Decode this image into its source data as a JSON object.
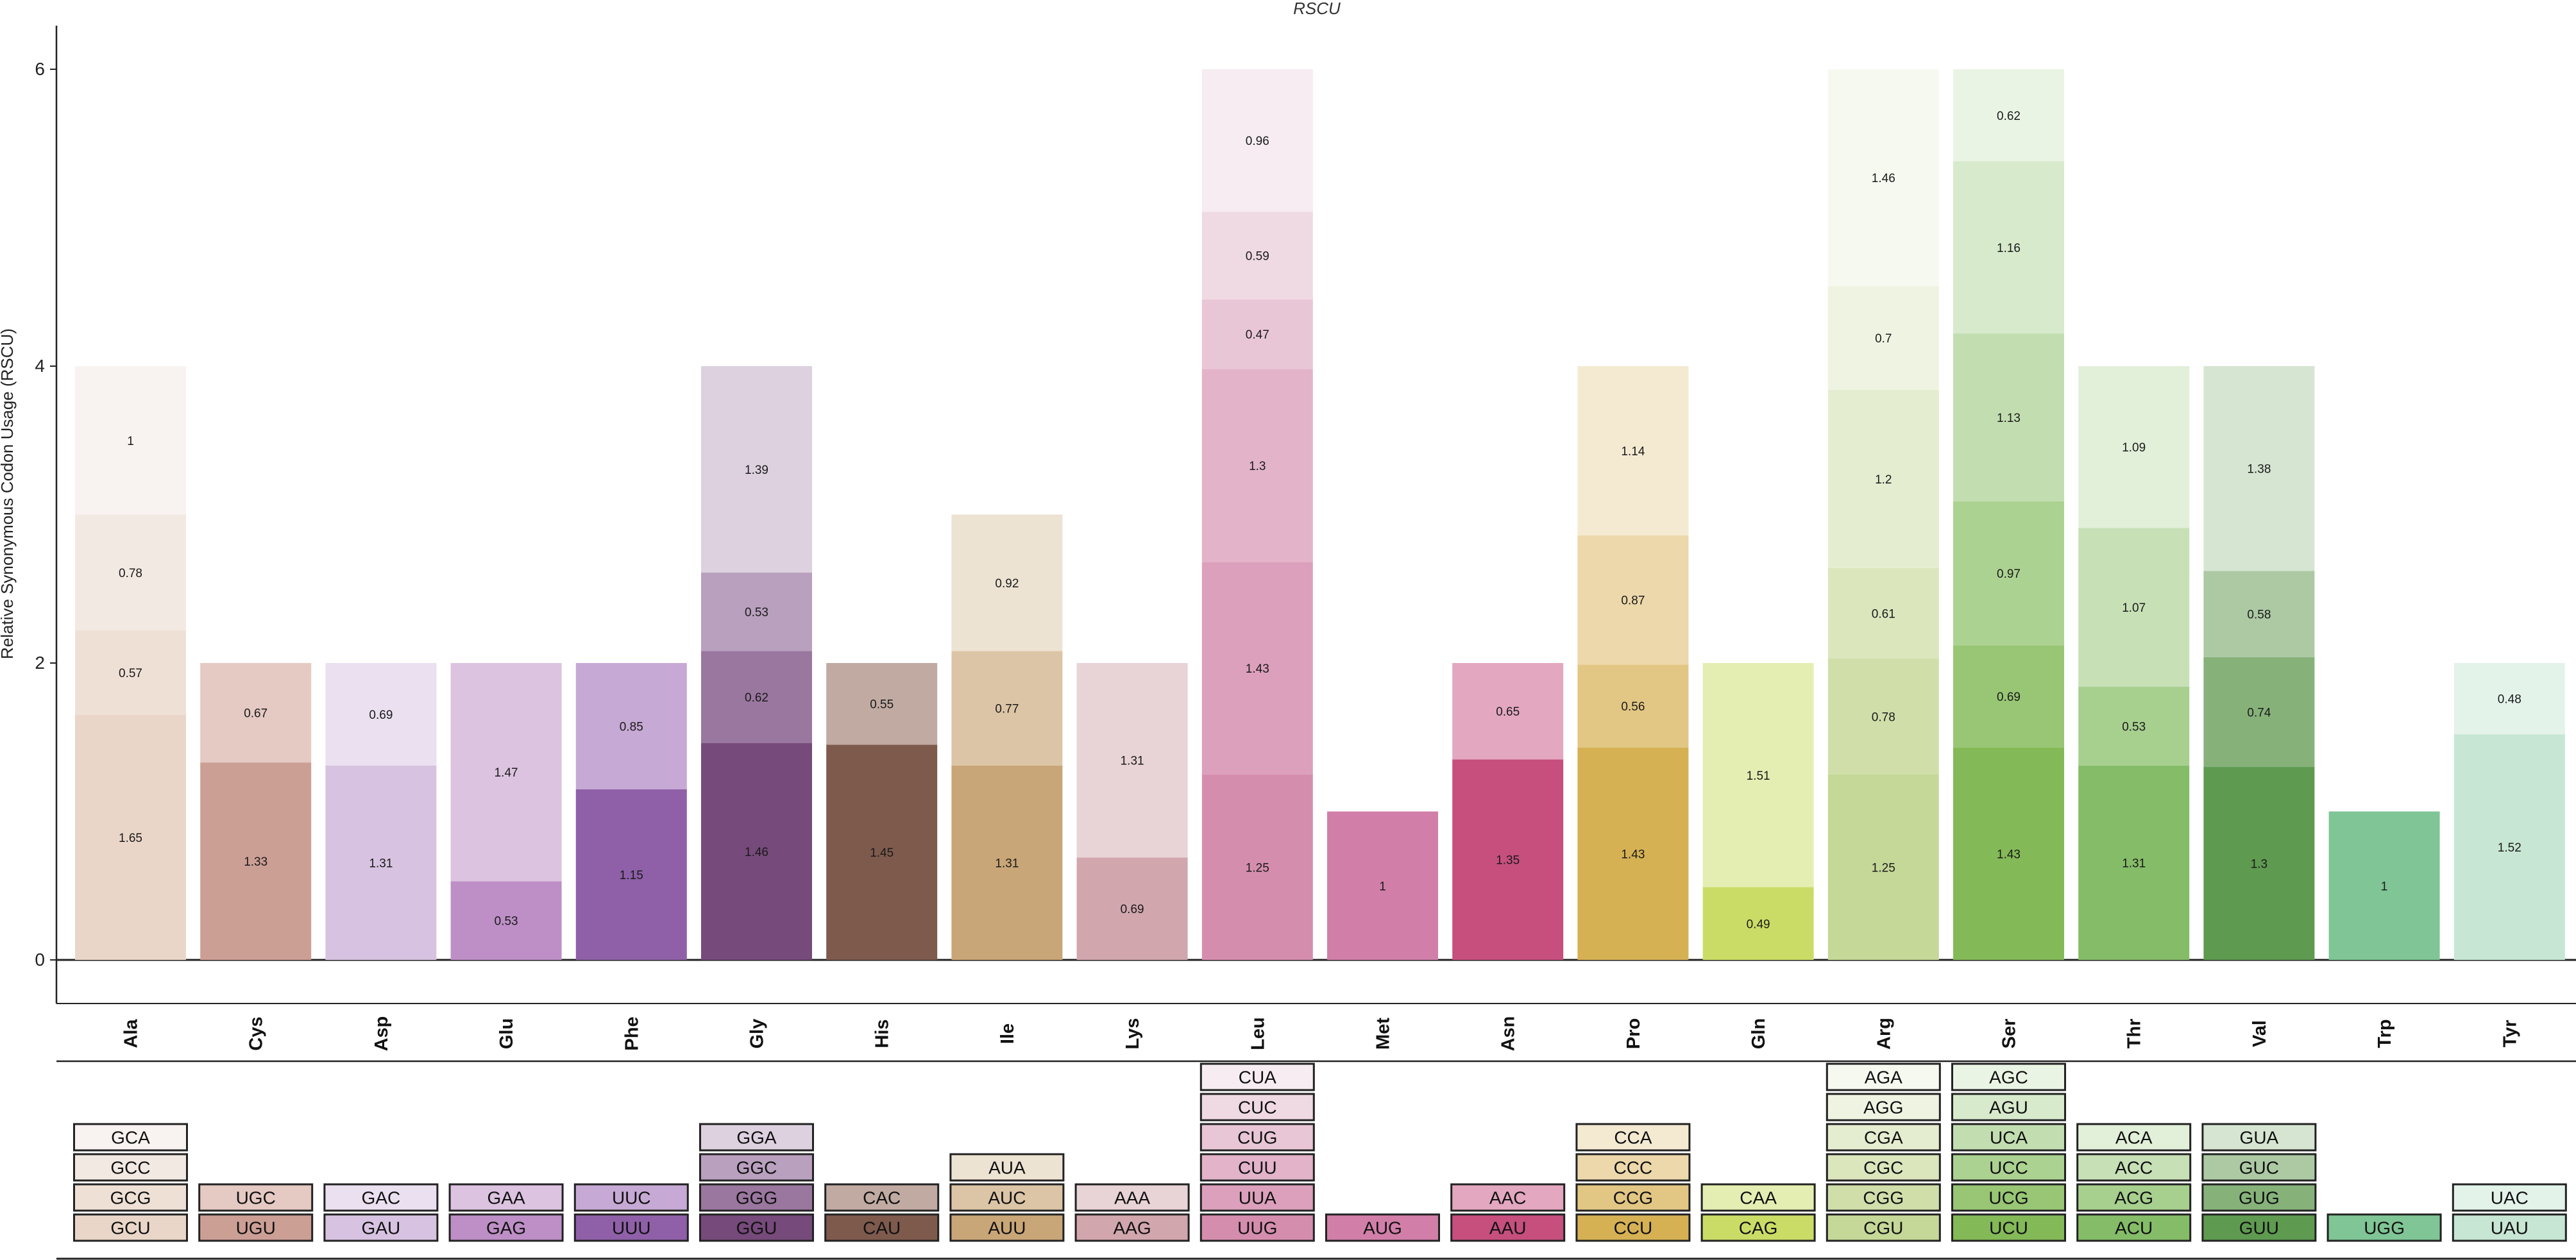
{
  "chart_data": {
    "type": "bar",
    "stacked": true,
    "title": "RSCU",
    "xlabel": "",
    "ylabel": "Relative Synonymous Codon Usage (RSCU)",
    "ylim": [
      0,
      6
    ],
    "yticks": [
      0,
      2,
      4,
      6
    ],
    "grid": false,
    "categories": [
      "Ala",
      "Cys",
      "Asp",
      "Glu",
      "Phe",
      "Gly",
      "His",
      "Ile",
      "Lys",
      "Leu",
      "Met",
      "Asn",
      "Pro",
      "Gln",
      "Arg",
      "Ser",
      "Thr",
      "Val",
      "Trp",
      "Tyr"
    ],
    "groups": [
      {
        "aa": "Ala",
        "codons": [
          {
            "codon": "GCU",
            "value": 1.65,
            "label": "1.65",
            "color": "#ead6c8"
          },
          {
            "codon": "GCG",
            "value": 0.57,
            "label": "0.57",
            "color": "#efe0d6"
          },
          {
            "codon": "GCC",
            "value": 0.78,
            "label": "0.78",
            "color": "#f3e9e3"
          },
          {
            "codon": "GCA",
            "value": 1,
            "label": "1",
            "color": "#f8f3f0"
          }
        ]
      },
      {
        "aa": "Cys",
        "codons": [
          {
            "codon": "UGU",
            "value": 1.33,
            "label": "1.33",
            "color": "#cc9f95"
          },
          {
            "codon": "UGC",
            "value": 0.67,
            "label": "0.67",
            "color": "#e5c9c3"
          }
        ]
      },
      {
        "aa": "Asp",
        "codons": [
          {
            "codon": "GAU",
            "value": 1.31,
            "label": "1.31",
            "color": "#d7c3e1"
          },
          {
            "codon": "GAC",
            "value": 0.69,
            "label": "0.69",
            "color": "#ebe0f0"
          }
        ]
      },
      {
        "aa": "Glu",
        "codons": [
          {
            "codon": "GAG",
            "value": 0.53,
            "label": "0.53",
            "color": "#bd8fc6"
          },
          {
            "codon": "GAA",
            "value": 1.47,
            "label": "1.47",
            "color": "#dcc3e0"
          }
        ]
      },
      {
        "aa": "Phe",
        "codons": [
          {
            "codon": "UUU",
            "value": 1.15,
            "label": "1.15",
            "color": "#8f60a8"
          },
          {
            "codon": "UUC",
            "value": 0.85,
            "label": "0.85",
            "color": "#c6a9d4"
          }
        ]
      },
      {
        "aa": "Gly",
        "codons": [
          {
            "codon": "GGU",
            "value": 1.46,
            "label": "1.46",
            "color": "#764a7b"
          },
          {
            "codon": "GGG",
            "value": 0.62,
            "label": "0.62",
            "color": "#9a779f"
          },
          {
            "codon": "GGC",
            "value": 0.53,
            "label": "0.53",
            "color": "#b9a0be"
          },
          {
            "codon": "GGA",
            "value": 1.39,
            "label": "1.39",
            "color": "#ddd1e0"
          }
        ]
      },
      {
        "aa": "His",
        "codons": [
          {
            "codon": "CAU",
            "value": 1.45,
            "label": "1.45",
            "color": "#7e5a4d"
          },
          {
            "codon": "CAC",
            "value": 0.55,
            "label": "0.55",
            "color": "#c0aaa2"
          }
        ]
      },
      {
        "aa": "Ile",
        "codons": [
          {
            "codon": "AUU",
            "value": 1.31,
            "label": "1.31",
            "color": "#c9a677"
          },
          {
            "codon": "AUC",
            "value": 0.77,
            "label": "0.77",
            "color": "#dcc5a6"
          },
          {
            "codon": "AUA",
            "value": 0.92,
            "label": "0.92",
            "color": "#ede3d3"
          }
        ]
      },
      {
        "aa": "Lys",
        "codons": [
          {
            "codon": "AAG",
            "value": 0.69,
            "label": "0.69",
            "color": "#d1a6ad"
          },
          {
            "codon": "AAA",
            "value": 1.31,
            "label": "1.31",
            "color": "#e8d3d6"
          }
        ]
      },
      {
        "aa": "Leu",
        "codons": [
          {
            "codon": "UUG",
            "value": 1.25,
            "label": "1.25",
            "color": "#d58dae"
          },
          {
            "codon": "UUA",
            "value": 1.43,
            "label": "1.43",
            "color": "#dca0bc"
          },
          {
            "codon": "CUU",
            "value": 1.3,
            "label": "1.3",
            "color": "#e2b3c9"
          },
          {
            "codon": "CUG",
            "value": 0.47,
            "label": "0.47",
            "color": "#e9c6d6"
          },
          {
            "codon": "CUC",
            "value": 0.59,
            "label": "0.59",
            "color": "#efd9e3"
          },
          {
            "codon": "CUA",
            "value": 0.96,
            "label": "0.96",
            "color": "#f6ecf1"
          }
        ]
      },
      {
        "aa": "Met",
        "codons": [
          {
            "codon": "AUG",
            "value": 1,
            "label": "1",
            "color": "#d17fa9"
          }
        ]
      },
      {
        "aa": "Asn",
        "codons": [
          {
            "codon": "AAU",
            "value": 1.35,
            "label": "1.35",
            "color": "#c64f7e"
          },
          {
            "codon": "AAC",
            "value": 0.65,
            "label": "0.65",
            "color": "#e3a7bf"
          }
        ]
      },
      {
        "aa": "Pro",
        "codons": [
          {
            "codon": "CCU",
            "value": 1.43,
            "label": "1.43",
            "color": "#d6b154"
          },
          {
            "codon": "CCG",
            "value": 0.56,
            "label": "0.56",
            "color": "#e2c683"
          },
          {
            "codon": "CCC",
            "value": 0.87,
            "label": "0.87",
            "color": "#ecd8aa"
          },
          {
            "codon": "CCA",
            "value": 1.14,
            "label": "1.14",
            "color": "#f4ead2"
          }
        ]
      },
      {
        "aa": "Gln",
        "codons": [
          {
            "codon": "CAG",
            "value": 0.49,
            "label": "0.49",
            "color": "#cbdc66"
          },
          {
            "codon": "CAA",
            "value": 1.51,
            "label": "1.51",
            "color": "#e5eeb2"
          }
        ]
      },
      {
        "aa": "Arg",
        "codons": [
          {
            "codon": "CGU",
            "value": 1.25,
            "label": "1.25",
            "color": "#c5d897"
          },
          {
            "codon": "CGG",
            "value": 0.78,
            "label": "0.78",
            "color": "#d0dfaa"
          },
          {
            "codon": "CGC",
            "value": 0.61,
            "label": "0.61",
            "color": "#dbe6bd"
          },
          {
            "codon": "CGA",
            "value": 1.2,
            "label": "1.2",
            "color": "#e5edd0"
          },
          {
            "codon": "AGG",
            "value": 0.7,
            "label": "0.7",
            "color": "#eff4e2"
          },
          {
            "codon": "AGA",
            "value": 1.46,
            "label": "1.46",
            "color": "#f6f9f0"
          }
        ]
      },
      {
        "aa": "Ser",
        "codons": [
          {
            "codon": "UCU",
            "value": 1.43,
            "label": "1.43",
            "color": "#84b957"
          },
          {
            "codon": "UCG",
            "value": 0.69,
            "label": "0.69",
            "color": "#98c674"
          },
          {
            "codon": "UCC",
            "value": 0.97,
            "label": "0.97",
            "color": "#acd291"
          },
          {
            "codon": "UCA",
            "value": 1.13,
            "label": "1.13",
            "color": "#c2deb0"
          },
          {
            "codon": "AGU",
            "value": 1.16,
            "label": "1.16",
            "color": "#d7eacc"
          },
          {
            "codon": "AGC",
            "value": 0.62,
            "label": "0.62",
            "color": "#eaf4e4"
          }
        ]
      },
      {
        "aa": "Thr",
        "codons": [
          {
            "codon": "ACU",
            "value": 1.31,
            "label": "1.31",
            "color": "#85bc68"
          },
          {
            "codon": "ACG",
            "value": 0.53,
            "label": "0.53",
            "color": "#a7cf8e"
          },
          {
            "codon": "ACC",
            "value": 1.07,
            "label": "1.07",
            "color": "#c7e0b6"
          },
          {
            "codon": "ACA",
            "value": 1.09,
            "label": "1.09",
            "color": "#e2efd9"
          }
        ]
      },
      {
        "aa": "Val",
        "codons": [
          {
            "codon": "GUU",
            "value": 1.3,
            "label": "1.3",
            "color": "#5e9a50"
          },
          {
            "codon": "GUG",
            "value": 0.74,
            "label": "0.74",
            "color": "#86b27a"
          },
          {
            "codon": "GUC",
            "value": 0.58,
            "label": "0.58",
            "color": "#acc9a4"
          },
          {
            "codon": "GUA",
            "value": 1.38,
            "label": "1.38",
            "color": "#d6e5d1"
          }
        ]
      },
      {
        "aa": "Trp",
        "codons": [
          {
            "codon": "UGG",
            "value": 1,
            "label": "1",
            "color": "#7fc595"
          }
        ]
      },
      {
        "aa": "Tyr",
        "codons": [
          {
            "codon": "UAU",
            "value": 1.52,
            "label": "1.52",
            "color": "#c7e6d4"
          },
          {
            "codon": "UAC",
            "value": 0.48,
            "label": "0.48",
            "color": "#e3f3ea"
          }
        ]
      }
    ]
  }
}
